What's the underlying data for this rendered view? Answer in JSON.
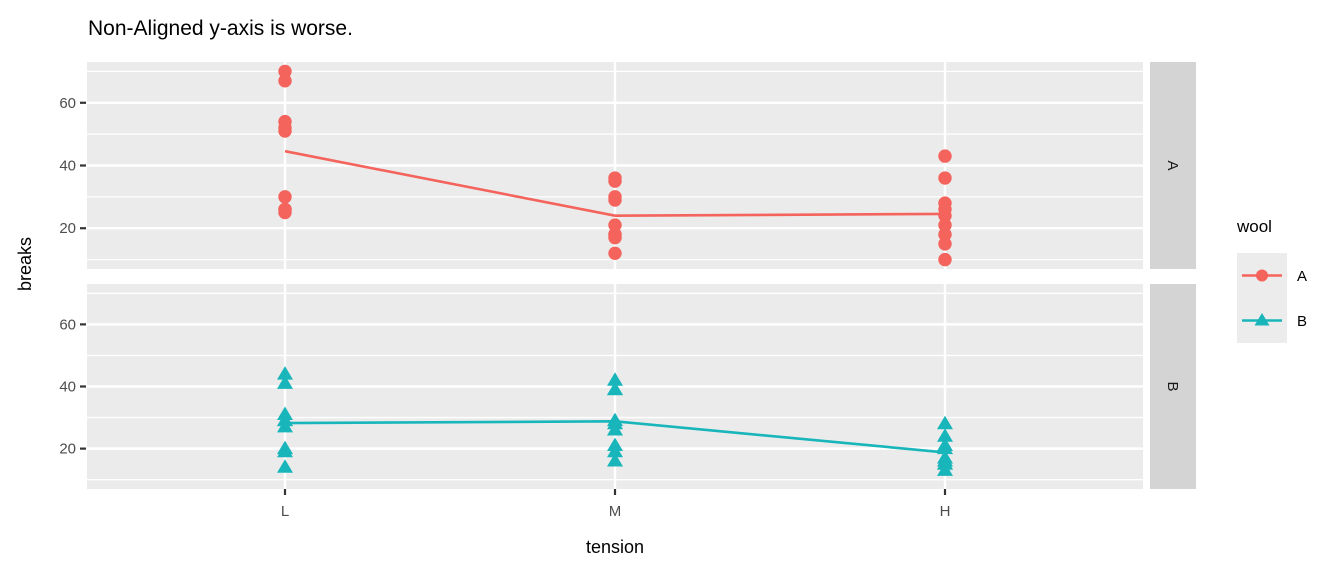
{
  "title": "Non-Aligned y-axis is worse.",
  "x_axis": {
    "label": "tension",
    "ticks": [
      "L",
      "M",
      "H"
    ]
  },
  "y_axis": {
    "label": "breaks",
    "ticks": [
      "20",
      "40",
      "60"
    ]
  },
  "facets": [
    "A",
    "B"
  ],
  "legend": {
    "title": "wool",
    "entries": [
      {
        "label": "A",
        "shape": "circle"
      },
      {
        "label": "B",
        "shape": "triangle"
      }
    ]
  },
  "colors": {
    "wool_A": "#F4635C",
    "wool_B": "#18B6BA",
    "panel_bg": "#EBEBEB",
    "strip_bg": "#D4D4D4",
    "grid": "#FFFFFF",
    "tick_mark": "#333333",
    "tick_label": "#4D4D4D",
    "text": "#000000",
    "legend_key_bg": "#ECECEC"
  },
  "chart_data": {
    "type": "scatter",
    "title": "Non-Aligned y-axis is worse.",
    "xlabel": "tension",
    "ylabel": "breaks",
    "x_categories": [
      "L",
      "M",
      "H"
    ],
    "ylim": [
      7,
      73
    ],
    "y_major_ticks": [
      20,
      40,
      60
    ],
    "y_minor_gridlines": [
      10,
      30,
      50,
      70
    ],
    "grid": true,
    "legend_title": "wool",
    "legend_position": "right",
    "facet_rows": [
      "A",
      "B"
    ],
    "series": [
      {
        "name": "A",
        "facet": "A",
        "shape": "circle",
        "points": [
          {
            "x": "L",
            "values": [
              26,
              30,
              54,
              25,
              70,
              52,
              51,
              26,
              67
            ]
          },
          {
            "x": "M",
            "values": [
              18,
              21,
              29,
              17,
              12,
              18,
              35,
              30,
              36
            ]
          },
          {
            "x": "H",
            "values": [
              36,
              21,
              24,
              18,
              10,
              43,
              28,
              15,
              26
            ]
          }
        ],
        "mean_line": [
          {
            "x": "L",
            "y": 44.56
          },
          {
            "x": "M",
            "y": 24.0
          },
          {
            "x": "H",
            "y": 24.56
          }
        ]
      },
      {
        "name": "B",
        "facet": "B",
        "shape": "triangle",
        "points": [
          {
            "x": "L",
            "values": [
              27,
              14,
              29,
              19,
              29,
              31,
              41,
              20,
              44
            ]
          },
          {
            "x": "M",
            "values": [
              42,
              26,
              19,
              16,
              39,
              28,
              21,
              39,
              29
            ]
          },
          {
            "x": "H",
            "values": [
              20,
              21,
              24,
              17,
              13,
              15,
              15,
              16,
              28
            ]
          }
        ],
        "mean_line": [
          {
            "x": "L",
            "y": 28.22
          },
          {
            "x": "M",
            "y": 28.78
          },
          {
            "x": "H",
            "y": 18.78
          }
        ]
      }
    ]
  }
}
